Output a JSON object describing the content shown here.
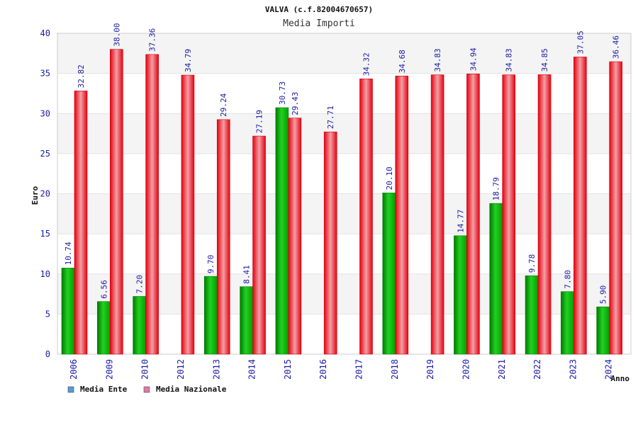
{
  "chart_data": {
    "type": "bar",
    "title": "VALVA (c.f.82004670657)",
    "subtitle": "Media Importi",
    "ylabel": "Euro",
    "xlabel": "Anno",
    "ylim": [
      0,
      40
    ],
    "yticks": [
      0,
      5,
      10,
      15,
      20,
      25,
      30,
      35,
      40
    ],
    "categories": [
      "2006",
      "2009",
      "2010",
      "2012",
      "2013",
      "2014",
      "2015",
      "2016",
      "2017",
      "2018",
      "2019",
      "2020",
      "2021",
      "2022",
      "2023",
      "2024"
    ],
    "series": [
      {
        "name": "Media Ente",
        "legend_color": "#5b9bd5",
        "bar_color": "#00b000",
        "values": [
          10.74,
          6.56,
          7.2,
          null,
          9.7,
          8.41,
          30.73,
          null,
          null,
          20.1,
          null,
          14.77,
          18.79,
          9.78,
          7.8,
          5.9
        ],
        "labels": [
          "10.74",
          "6.56",
          "7.20",
          "",
          "9.70",
          "8.41",
          "30.73",
          "",
          "",
          "20.10",
          "",
          "14.77",
          "18.79",
          "9.78",
          "7.80",
          "5.90"
        ]
      },
      {
        "name": "Media Nazionale",
        "legend_color": "#e07aa8",
        "bar_color": "#ee1c24",
        "values": [
          32.82,
          38.0,
          37.36,
          34.79,
          29.24,
          27.19,
          29.43,
          27.71,
          34.32,
          34.68,
          34.83,
          34.94,
          34.83,
          34.85,
          37.05,
          36.46
        ],
        "labels": [
          "32.82",
          "38.00",
          "37.36",
          "34.79",
          "29.24",
          "27.19",
          "29.43",
          "27.71",
          "34.32",
          "34.68",
          "34.83",
          "34.94",
          "34.83",
          "34.85",
          "37.05",
          "36.46"
        ]
      }
    ],
    "grid": true,
    "legend_position": "bottom-left"
  }
}
